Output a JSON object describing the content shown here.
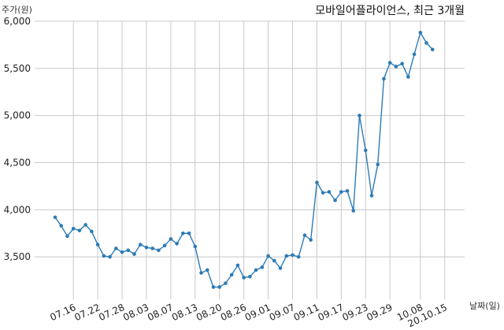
{
  "chart_data": {
    "type": "line",
    "title": "모바일어플라이언스, 최근 3개월",
    "ylabel": "주가(원)",
    "xlabel": "날짜(일)",
    "ylim": [
      3050,
      6000
    ],
    "yticks": [
      3500,
      4000,
      4500,
      5000,
      5500,
      6000
    ],
    "ytick_labels": [
      "3,500",
      "4,000",
      "4,500",
      "5,000",
      "5,500",
      "6,000"
    ],
    "xtick_labels": [
      "07.16",
      "07.22",
      "07.28",
      "08.03",
      "08.07",
      "08.13",
      "08.20",
      "08.26",
      "09.01",
      "09.07",
      "09.11",
      "09.17",
      "09.23",
      "09.29",
      "10.08",
      "20.10.15"
    ],
    "xtick_index": [
      3,
      7,
      11,
      15,
      19,
      23,
      27,
      31,
      35,
      39,
      43,
      47,
      51,
      55,
      60,
      64
    ],
    "grid": true,
    "series": [
      {
        "values": [
          3920,
          3830,
          3720,
          3800,
          3780,
          3840,
          3770,
          3630,
          3510,
          3500,
          3590,
          3550,
          3570,
          3530,
          3630,
          3600,
          3590,
          3570,
          3620,
          3690,
          3640,
          3750,
          3750,
          3610,
          3330,
          3360,
          3180,
          3180,
          3220,
          3310,
          3410,
          3280,
          3290,
          3360,
          3390,
          3510,
          3460,
          3380,
          3510,
          3520,
          3500,
          3730,
          3680,
          4290,
          4180,
          4190,
          4100,
          4190,
          4200,
          3990,
          5000,
          4630,
          4150,
          4480,
          5390,
          5560,
          5520,
          5550,
          5410,
          5650,
          5880,
          5770,
          5700
        ]
      }
    ]
  }
}
